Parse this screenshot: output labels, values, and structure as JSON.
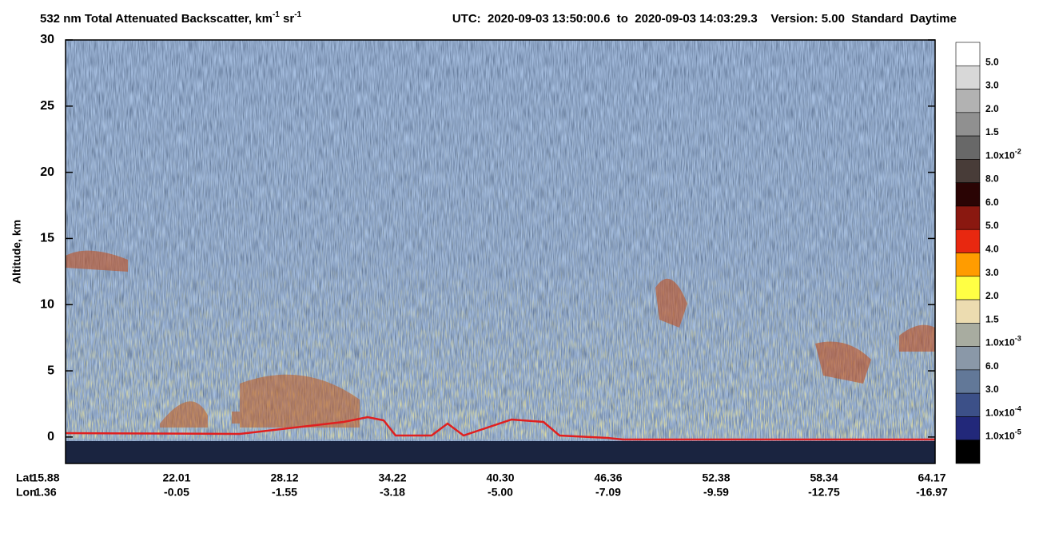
{
  "chart_data": {
    "type": "curtain",
    "title": [
      {
        "text": "532 nm Total Attenuated Backscatter, km"
      },
      {
        "text": "-1",
        "sup": true
      },
      {
        "text": " sr"
      },
      {
        "text": "-1",
        "sup": true
      }
    ],
    "subtitle": "UTC:  2020-09-03 13:50:00.6  to  2020-09-03 14:03:29.3    Version: 5.00  Standard  Daytime",
    "ylabel": "Altitude, km",
    "ylim": [
      -2,
      30
    ],
    "yticks": [
      0,
      5,
      10,
      15,
      20,
      25,
      30
    ],
    "x_rows": [
      {
        "name": "Lat",
        "labels": [
          "15.88",
          "22.01",
          "28.12",
          "34.22",
          "40.30",
          "46.36",
          "52.38",
          "58.34",
          "64.17"
        ]
      },
      {
        "name": "Lon",
        "labels": [
          "1.36",
          "-0.05",
          "-1.55",
          "-3.18",
          "-5.00",
          "-7.09",
          "-9.59",
          "-12.75",
          "-16.97"
        ]
      }
    ],
    "colorbar": {
      "colors": [
        "#ffffff",
        "#d8d8d8",
        "#b2b2b2",
        "#909090",
        "#686868",
        "#483c38",
        "#2a0404",
        "#8a1810",
        "#e82810",
        "#ff9c00",
        "#ffff44",
        "#ecdcb0",
        "#a8aca0",
        "#8a98a8",
        "#627898",
        "#3c5088",
        "#22287a",
        "#000000"
      ],
      "labels": [
        {
          "text": "5.0"
        },
        {
          "text": "3.0"
        },
        {
          "text": "2.0"
        },
        {
          "text": "1.5"
        },
        {
          "text": "1.0x10",
          "sup": "-2"
        },
        {
          "text": "8.0"
        },
        {
          "text": "6.0"
        },
        {
          "text": "5.0"
        },
        {
          "text": "4.0"
        },
        {
          "text": "3.0"
        },
        {
          "text": "2.0"
        },
        {
          "text": "1.5"
        },
        {
          "text": "1.0x10",
          "sup": "-3"
        },
        {
          "text": "6.0"
        },
        {
          "text": "3.0"
        },
        {
          "text": "1.0x10",
          "sup": "-4"
        },
        {
          "text": "1.0x10",
          "sup": "-5"
        }
      ]
    }
  }
}
